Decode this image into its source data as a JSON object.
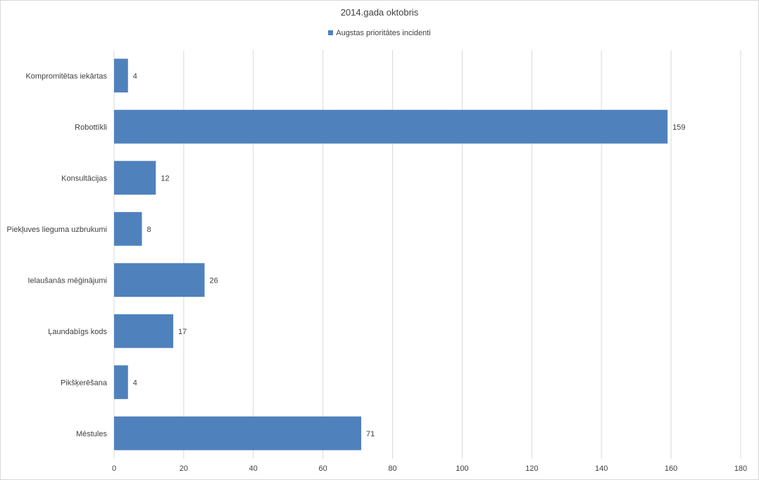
{
  "chart_data": {
    "type": "bar",
    "orientation": "horizontal",
    "title": "2014.gada oktobris",
    "categories": [
      "Kompromitētas iekārtas",
      "Robottīkli",
      "Konsultācijas",
      "Piekļuves lieguma uzbrukumi",
      "Ielaušanās mēģinājumi",
      "Ļaundabīgs kods",
      "Pikšķerēšana",
      "Mēstules"
    ],
    "series": [
      {
        "name": "Augstas prioritātes incidenti",
        "values": [
          4,
          159,
          12,
          8,
          26,
          17,
          4,
          71
        ],
        "color": "#4f81bd"
      }
    ],
    "xlim": [
      0,
      180
    ],
    "xticks": [
      0,
      20,
      40,
      60,
      80,
      100,
      120,
      140,
      160,
      180
    ],
    "grid": "vertical",
    "legend": "top-center",
    "data_labels": true
  }
}
